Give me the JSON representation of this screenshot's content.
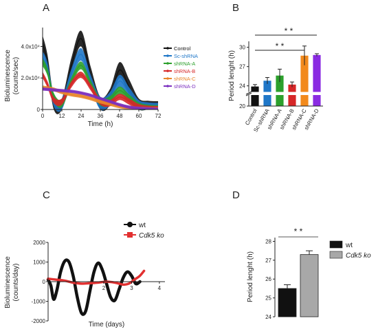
{
  "panels": [
    {
      "letter": "A"
    },
    {
      "letter": "B"
    },
    {
      "letter": "C"
    },
    {
      "letter": "D"
    }
  ],
  "chart_data": [
    {
      "panel": "A",
      "type": "line",
      "xlabel": "Time (h)",
      "ylabel_line1": "Bioluminescence",
      "ylabel_line2": "(counts/sec)",
      "xticks": [
        "0",
        "12",
        "24",
        "36",
        "48",
        "60",
        "72"
      ],
      "yticks": [
        "0",
        "2.0x10⁴",
        "4.0x10⁴"
      ],
      "xlim": [
        0,
        72
      ],
      "ylim": [
        0,
        52000
      ],
      "series": [
        {
          "name": "Control",
          "color": "#111111",
          "x": [
            0,
            3,
            7,
            12,
            18,
            24,
            30,
            36,
            42,
            48,
            54,
            60,
            66,
            72
          ],
          "y": [
            42000,
            30000,
            4000,
            2000,
            28000,
            45000,
            22000,
            3000,
            8000,
            25000,
            14000,
            2000,
            500,
            300
          ],
          "band": 5000
        },
        {
          "name": "Sc-shRNA",
          "color": "#1f77c8",
          "x": [
            0,
            3,
            7,
            12,
            18,
            24,
            30,
            36,
            42,
            48,
            54,
            60,
            66,
            72
          ],
          "y": [
            33000,
            26000,
            6000,
            3000,
            22000,
            35000,
            18000,
            4000,
            7000,
            18000,
            10000,
            2000,
            500,
            200
          ],
          "band": 4000
        },
        {
          "name": "shRNA-A",
          "color": "#2ca02c",
          "x": [
            0,
            3,
            7,
            12,
            18,
            24,
            30,
            36,
            42,
            48,
            54,
            60,
            66,
            72
          ],
          "y": [
            30000,
            24000,
            8000,
            4000,
            18000,
            28000,
            16000,
            5000,
            6000,
            12000,
            7000,
            2000,
            500,
            200
          ],
          "band": 2500
        },
        {
          "name": "shRNA-B",
          "color": "#d62728",
          "x": [
            0,
            3,
            7,
            12,
            18,
            24,
            30,
            36,
            42,
            48,
            54,
            60,
            66,
            72
          ],
          "y": [
            22000,
            16000,
            6000,
            5000,
            16000,
            22000,
            14000,
            5000,
            4000,
            8000,
            5000,
            1500,
            400,
            200
          ],
          "band": 2000
        },
        {
          "name": "shRNA-C",
          "color": "#e8862a",
          "x": [
            0,
            6,
            12,
            18,
            24,
            30,
            36,
            42,
            48,
            54,
            60,
            66,
            72
          ],
          "y": [
            14000,
            13000,
            11000,
            9500,
            8500,
            7000,
            5000,
            3500,
            2000,
            1200,
            600,
            300,
            200
          ],
          "band": 1200
        },
        {
          "name": "shRNA-D",
          "color": "#7b2fbf",
          "x": [
            0,
            6,
            12,
            18,
            24,
            30,
            36,
            42,
            48,
            54,
            60,
            66,
            72
          ],
          "y": [
            13000,
            12500,
            12000,
            11500,
            10500,
            9000,
            7000,
            5000,
            3000,
            1500,
            800,
            400,
            200
          ],
          "band": 1000
        }
      ]
    },
    {
      "panel": "B",
      "type": "bar",
      "ylabel": "Period lenght (h)",
      "categories": [
        "Control",
        "Sc-shRNA",
        "shRNA-A",
        "shRNA-B",
        "shRNA-C",
        "shRNA-D"
      ],
      "values": [
        23.9,
        24.8,
        25.6,
        24.2,
        28.7,
        28.8
      ],
      "errors": [
        0.3,
        0.5,
        1.0,
        0.4,
        1.5,
        0.2
      ],
      "colors": [
        "#111111",
        "#1f77c8",
        "#2ca02c",
        "#d62728",
        "#f28a1c",
        "#8a2be2"
      ],
      "yticks": [
        "20",
        "24",
        "27",
        "30"
      ],
      "broken_axis": {
        "lower": [
          20,
          21
        ],
        "upper": [
          23,
          30.5
        ]
      },
      "annotations": [
        "* *",
        "* *"
      ]
    },
    {
      "panel": "C",
      "type": "line",
      "xlabel": "Time  (days)",
      "ylabel_line1": "Bioluminescence",
      "ylabel_line2": "(counts/day)",
      "xticks": [
        "1",
        "2",
        "3",
        "4"
      ],
      "yticks": [
        "-2000",
        "-1000",
        "0",
        "1000",
        "2000"
      ],
      "xlim": [
        0,
        4.2
      ],
      "ylim": [
        -2000,
        2000
      ],
      "series": [
        {
          "name": "wt",
          "italic": false,
          "color": "#111111",
          "marker": "circle",
          "x": [
            0.0,
            0.1,
            0.2,
            0.32,
            0.45,
            0.6,
            0.75,
            0.9,
            1.05,
            1.2,
            1.35,
            1.5,
            1.65,
            1.8,
            1.95,
            2.1,
            2.25,
            2.4,
            2.55,
            2.7,
            2.85,
            3.0,
            3.15,
            3.3
          ],
          "y": [
            100,
            -200,
            -900,
            -400,
            500,
            1050,
            1000,
            300,
            -800,
            -1600,
            -1500,
            -500,
            500,
            950,
            600,
            -100,
            -800,
            -950,
            -400,
            200,
            500,
            300,
            -100,
            0
          ]
        },
        {
          "name": "Cdk5 ko",
          "italic": true,
          "color": "#e23030",
          "marker": "square",
          "x": [
            0.0,
            0.3,
            0.6,
            0.9,
            1.2,
            1.5,
            1.8,
            2.1,
            2.4,
            2.7,
            2.9,
            3.1,
            3.3,
            3.45
          ],
          "y": [
            150,
            100,
            50,
            -50,
            -100,
            -80,
            -50,
            0,
            -50,
            -150,
            -100,
            100,
            300,
            550
          ]
        }
      ]
    },
    {
      "panel": "D",
      "type": "bar",
      "ylabel": "Period lenght (h)",
      "categories": [
        "wt",
        "Cdk5 ko"
      ],
      "category_italic": [
        false,
        true
      ],
      "values": [
        25.5,
        27.3
      ],
      "errors": [
        0.2,
        0.2
      ],
      "colors": [
        "#111111",
        "#a8a8a8"
      ],
      "ylim": [
        24,
        28.2
      ],
      "yticks": [
        "24",
        "25",
        "26",
        "27",
        "28"
      ],
      "annotations": [
        "* *"
      ]
    }
  ]
}
